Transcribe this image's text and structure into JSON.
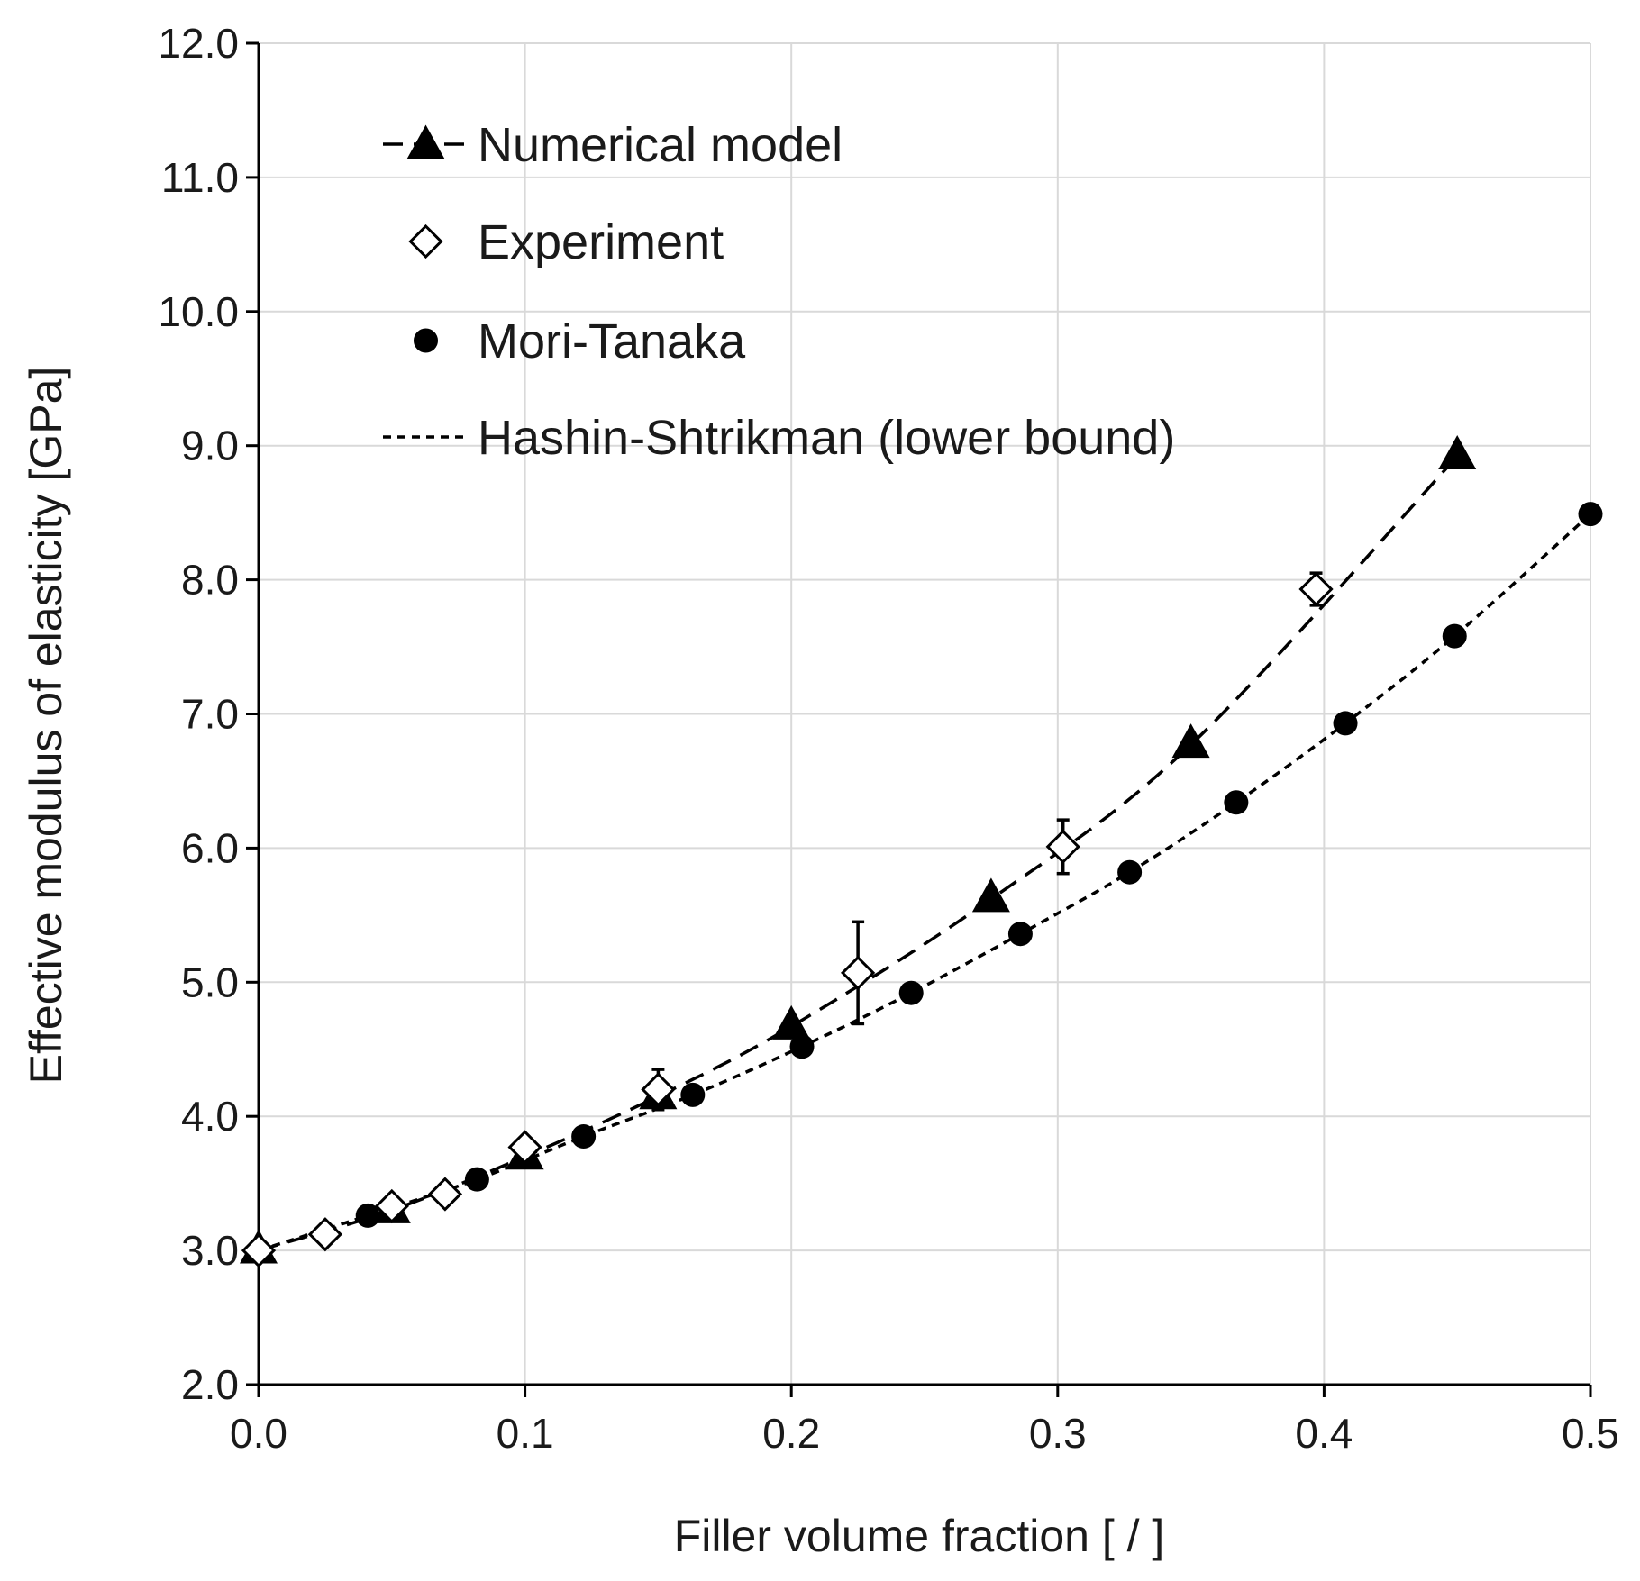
{
  "chart_data": {
    "type": "line",
    "title": "",
    "xlabel": "Filler volume fraction [ / ]",
    "ylabel": "Effective modulus of elasticity [GPa]",
    "xlim": [
      0.0,
      0.5
    ],
    "ylim": [
      2.0,
      12.0
    ],
    "x_ticks": [
      0.0,
      0.1,
      0.2,
      0.3,
      0.4,
      0.5
    ],
    "x_tick_labels": [
      "0.0",
      "0.1",
      "0.2",
      "0.3",
      "0.4",
      "0.5"
    ],
    "y_ticks": [
      2.0,
      3.0,
      4.0,
      5.0,
      6.0,
      7.0,
      8.0,
      9.0,
      10.0,
      11.0,
      12.0
    ],
    "y_tick_labels": [
      "2.0",
      "3.0",
      "4.0",
      "5.0",
      "6.0",
      "7.0",
      "8.0",
      "9.0",
      "10.0",
      "11.0",
      "12.0"
    ],
    "grid": true,
    "legend_position": "top-left",
    "series": [
      {
        "name": "Numerical model",
        "marker": "triangle",
        "line": "dashed",
        "x": [
          0.0,
          0.05,
          0.1,
          0.15,
          0.2,
          0.275,
          0.35,
          0.45
        ],
        "y": [
          3.0,
          3.3,
          3.7,
          4.15,
          4.67,
          5.62,
          6.77,
          8.92
        ]
      },
      {
        "name": "Experiment",
        "marker": "diamond-open",
        "line": "none",
        "x": [
          0.0,
          0.025,
          0.05,
          0.07,
          0.1,
          0.15,
          0.225,
          0.302,
          0.397
        ],
        "y": [
          3.0,
          3.12,
          3.33,
          3.42,
          3.77,
          4.2,
          5.07,
          6.01,
          7.93
        ],
        "error": [
          0.02,
          0.03,
          0.05,
          0.05,
          0.06,
          0.15,
          0.38,
          0.2,
          0.12
        ]
      },
      {
        "name": "Mori-Tanaka",
        "marker": "circle-filled",
        "line": "none",
        "x": [
          0.0,
          0.041,
          0.082,
          0.122,
          0.163,
          0.204,
          0.245,
          0.286,
          0.327,
          0.367,
          0.408,
          0.449,
          0.5
        ],
        "y": [
          3.0,
          3.26,
          3.53,
          3.85,
          4.16,
          4.52,
          4.92,
          5.36,
          5.82,
          6.34,
          6.93,
          7.58,
          8.49
        ]
      },
      {
        "name": "Hashin-Shtrikman (lower bound)",
        "marker": "none",
        "line": "dotted",
        "x": [
          0.0,
          0.041,
          0.082,
          0.122,
          0.163,
          0.204,
          0.245,
          0.286,
          0.327,
          0.367,
          0.408,
          0.449,
          0.5
        ],
        "y": [
          3.0,
          3.26,
          3.53,
          3.85,
          4.16,
          4.52,
          4.92,
          5.36,
          5.82,
          6.34,
          6.93,
          7.58,
          8.49
        ]
      }
    ]
  }
}
